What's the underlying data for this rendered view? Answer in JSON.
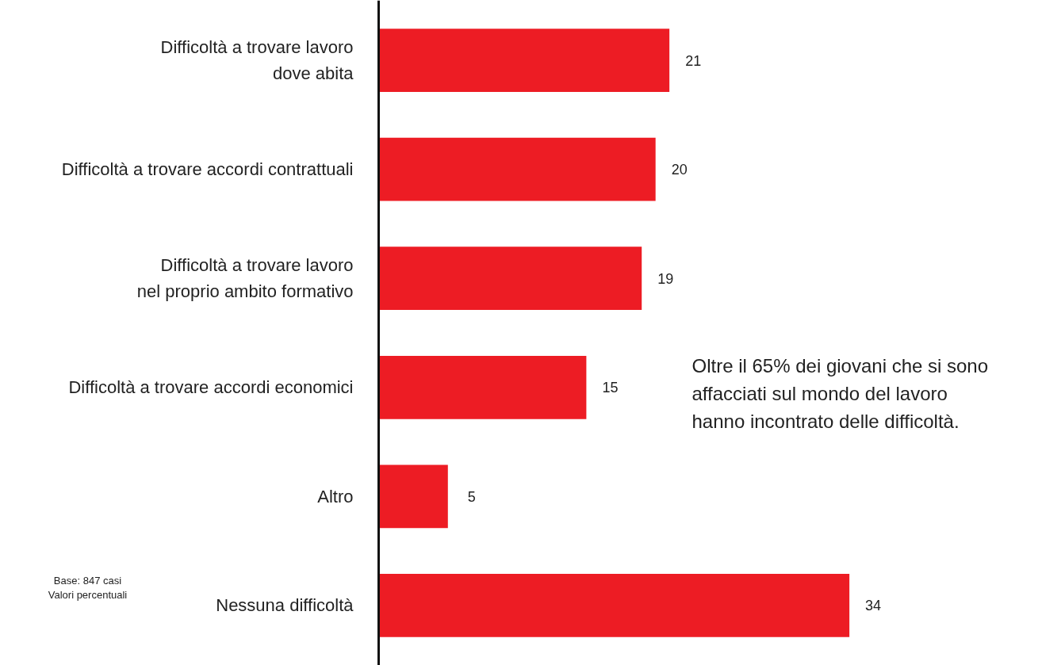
{
  "chart_data": {
    "type": "bar",
    "orientation": "horizontal",
    "categories": [
      "Difficoltà a trovare lavoro\ndove abita",
      "Difficoltà a trovare accordi contrattuali",
      "Difficoltà a trovare lavoro\nnel proprio ambito formativo",
      "Difficoltà a trovare accordi economici",
      "Altro",
      "Nessuna difficoltà"
    ],
    "values": [
      21,
      20,
      19,
      15,
      5,
      34
    ],
    "color": "#ed1c24",
    "data_labels": true,
    "grid": false,
    "tick_labels": "y",
    "annotations": [
      "Oltre il 65% dei giovani che si sono affacciati sul mondo del lavoro hanno incontrato delle difficoltà.",
      "Base: 847 casi\nValori percentuali"
    ]
  }
}
